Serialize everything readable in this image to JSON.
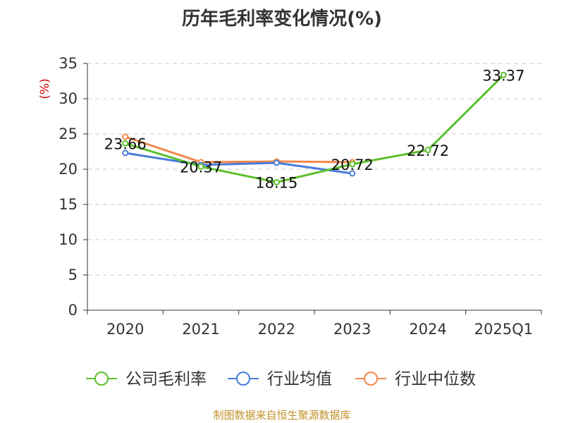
{
  "chart_data": {
    "type": "line",
    "title": "历年毛利率变化情况(%)",
    "ylabel": "(%)",
    "xlabel": "",
    "categories": [
      "2020",
      "2021",
      "2022",
      "2023",
      "2024",
      "2025Q1"
    ],
    "ylim": [
      0,
      35
    ],
    "yticks": [
      0,
      5,
      10,
      15,
      20,
      25,
      30,
      35
    ],
    "grid": true,
    "legend_position": "bottom",
    "series": [
      {
        "name": "公司毛利率",
        "color": "#5cbf2a",
        "values": [
          23.66,
          20.37,
          18.15,
          20.72,
          22.72,
          33.37
        ],
        "labels": [
          "23.66",
          "20.37",
          "18.15",
          "20.72",
          "22.72",
          "33.37"
        ]
      },
      {
        "name": "行业均值",
        "color": "#4a7bd8",
        "values": [
          22.3,
          20.6,
          20.9,
          19.4,
          null,
          null
        ]
      },
      {
        "name": "行业中位数",
        "color": "#f0884a",
        "values": [
          24.6,
          21.0,
          21.1,
          21.0,
          null,
          null
        ]
      }
    ]
  },
  "footer": "制图数据来自恒生聚源数据库"
}
